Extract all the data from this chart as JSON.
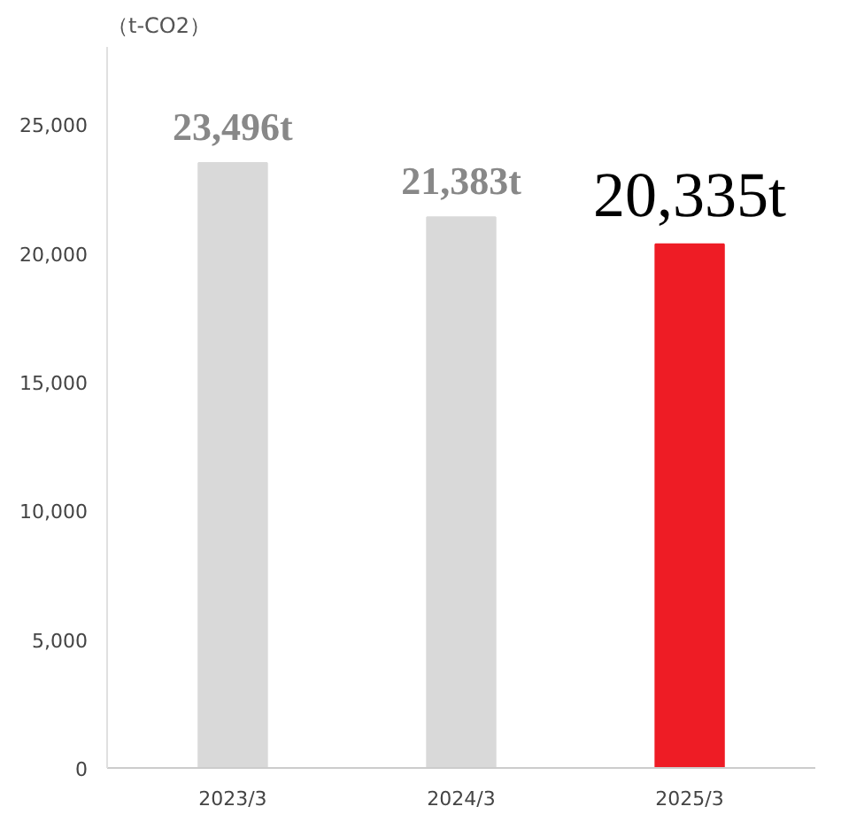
{
  "chart_data": {
    "type": "bar",
    "ylabel": "（t-CO2）",
    "categories": [
      "2023/3",
      "2024/3",
      "2025/3"
    ],
    "values": [
      23496,
      21383,
      20335
    ],
    "colors": [
      "#d9d9d9",
      "#d9d9d9",
      "#ee1c25"
    ],
    "value_labels": [
      "23,496t",
      "21,383t",
      "20,335t"
    ],
    "ylim": [
      0,
      28000
    ],
    "yticks": [
      0,
      {
        "value": 5000,
        "label": "5,000"
      },
      {
        "value": 10000,
        "label": "10,000"
      },
      {
        "value": 15000,
        "label": "15,000"
      },
      {
        "value": 20000,
        "label": "20,000"
      },
      {
        "value": 25000,
        "label": "25,000"
      }
    ],
    "grid": false
  }
}
